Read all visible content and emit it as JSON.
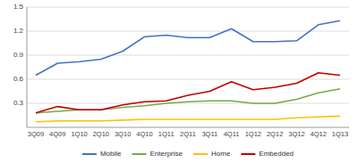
{
  "chart_data": {
    "type": "line",
    "categories": [
      "3Q09",
      "4Q09",
      "1Q10",
      "2Q10",
      "3Q10",
      "4Q10",
      "1Q11",
      "2Q11",
      "3Q11",
      "4Q11",
      "1Q12",
      "2Q12",
      "3Q12",
      "4Q12",
      "1Q13"
    ],
    "series": [
      {
        "name": "Mobile",
        "color": "#4472C4",
        "values": [
          0.65,
          0.8,
          0.82,
          0.85,
          0.95,
          1.13,
          1.15,
          1.12,
          1.12,
          1.23,
          1.07,
          1.07,
          1.08,
          1.28,
          1.33
        ]
      },
      {
        "name": "Enterprise",
        "color": "#70AD47",
        "values": [
          0.18,
          0.2,
          0.22,
          0.22,
          0.25,
          0.27,
          0.3,
          0.32,
          0.33,
          0.33,
          0.3,
          0.3,
          0.35,
          0.43,
          0.48
        ]
      },
      {
        "name": "Home",
        "color": "#FFC000",
        "values": [
          0.07,
          0.08,
          0.08,
          0.08,
          0.09,
          0.1,
          0.1,
          0.1,
          0.1,
          0.1,
          0.1,
          0.1,
          0.12,
          0.13,
          0.14
        ]
      },
      {
        "name": "Embedded",
        "color": "#C00000",
        "values": [
          0.18,
          0.26,
          0.22,
          0.22,
          0.28,
          0.32,
          0.33,
          0.4,
          0.45,
          0.57,
          0.47,
          0.5,
          0.55,
          0.68,
          0.65
        ]
      }
    ],
    "ylim": [
      0,
      1.5
    ],
    "yticks": [
      0.3,
      0.6,
      0.9,
      1.2,
      1.5
    ],
    "grid": true,
    "legend": "bottom"
  }
}
